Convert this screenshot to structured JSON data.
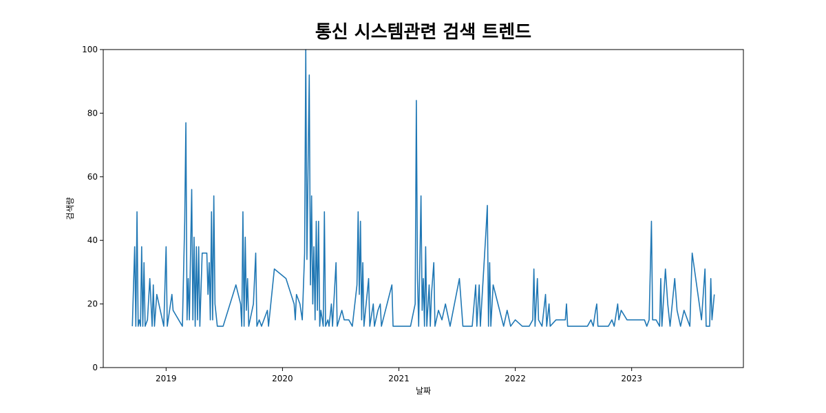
{
  "chart_data": {
    "type": "line",
    "title": "통신 시스템관련 검색 트렌드",
    "x_label": "날짜",
    "y_label": "검색량",
    "color": "#1f77b4",
    "x": [
      2018.71,
      2018.73,
      2018.74,
      2018.75,
      2018.76,
      2018.77,
      2018.78,
      2018.79,
      2018.8,
      2018.81,
      2018.82,
      2018.84,
      2018.86,
      2018.88,
      2018.89,
      2018.9,
      2018.92,
      2018.98,
      2019.0,
      2019.01,
      2019.05,
      2019.06,
      2019.14,
      2019.16,
      2019.17,
      2019.18,
      2019.19,
      2019.2,
      2019.21,
      2019.22,
      2019.23,
      2019.24,
      2019.25,
      2019.26,
      2019.27,
      2019.28,
      2019.29,
      2019.31,
      2019.35,
      2019.36,
      2019.37,
      2019.38,
      2019.39,
      2019.4,
      2019.41,
      2019.42,
      2019.44,
      2019.49,
      2019.6,
      2019.64,
      2019.65,
      2019.66,
      2019.67,
      2019.68,
      2019.69,
      2019.7,
      2019.71,
      2019.75,
      2019.77,
      2019.78,
      2019.8,
      2019.82,
      2019.87,
      2019.88,
      2019.93,
      2020.03,
      2020.1,
      2020.11,
      2020.12,
      2020.15,
      2020.17,
      2020.19,
      2020.2,
      2020.21,
      2020.22,
      2020.23,
      2020.24,
      2020.25,
      2020.26,
      2020.27,
      2020.28,
      2020.29,
      2020.3,
      2020.31,
      2020.32,
      2020.33,
      2020.35,
      2020.36,
      2020.37,
      2020.39,
      2020.4,
      2020.42,
      2020.43,
      2020.46,
      2020.47,
      2020.51,
      2020.53,
      2020.57,
      2020.6,
      2020.64,
      2020.65,
      2020.66,
      2020.67,
      2020.68,
      2020.69,
      2020.7,
      2020.74,
      2020.75,
      2020.78,
      2020.79,
      2020.82,
      2020.84,
      2020.85,
      2020.94,
      2020.95,
      2021.1,
      2021.14,
      2021.15,
      2021.16,
      2021.17,
      2021.18,
      2021.19,
      2021.2,
      2021.21,
      2021.22,
      2021.23,
      2021.24,
      2021.26,
      2021.27,
      2021.28,
      2021.3,
      2021.31,
      2021.34,
      2021.37,
      2021.4,
      2021.44,
      2021.52,
      2021.55,
      2021.63,
      2021.66,
      2021.67,
      2021.69,
      2021.7,
      2021.75,
      2021.76,
      2021.77,
      2021.78,
      2021.79,
      2021.81,
      2021.9,
      2021.93,
      2021.96,
      2022.0,
      2022.06,
      2022.12,
      2022.15,
      2022.16,
      2022.17,
      2022.19,
      2022.2,
      2022.23,
      2022.26,
      2022.27,
      2022.29,
      2022.3,
      2022.35,
      2022.43,
      2022.44,
      2022.45,
      2022.62,
      2022.65,
      2022.67,
      2022.69,
      2022.7,
      2022.71,
      2022.8,
      2022.83,
      2022.85,
      2022.88,
      2022.89,
      2022.91,
      2022.96,
      2023.11,
      2023.13,
      2023.15,
      2023.17,
      2023.18,
      2023.21,
      2023.24,
      2023.25,
      2023.26,
      2023.29,
      2023.31,
      2023.33,
      2023.37,
      2023.39,
      2023.42,
      2023.45,
      2023.5,
      2023.52,
      2023.6,
      2023.63,
      2023.64,
      2023.67,
      2023.68,
      2023.69,
      2023.71
    ],
    "values": [
      13,
      38,
      13,
      49,
      13,
      15,
      13,
      38,
      13,
      33,
      13,
      15,
      28,
      13,
      26,
      13,
      23,
      13,
      38,
      13,
      23,
      18,
      13,
      46,
      77,
      15,
      28,
      15,
      36,
      56,
      15,
      41,
      13,
      38,
      15,
      38,
      13,
      36,
      36,
      23,
      33,
      15,
      49,
      15,
      54,
      20,
      13,
      13,
      26,
      20,
      13,
      49,
      13,
      41,
      18,
      28,
      13,
      20,
      36,
      13,
      15,
      13,
      18,
      13,
      31,
      28,
      20,
      15,
      23,
      20,
      15,
      36,
      100,
      34,
      64,
      92,
      26,
      54,
      20,
      38,
      15,
      46,
      18,
      46,
      13,
      18,
      13,
      49,
      13,
      15,
      13,
      20,
      13,
      33,
      13,
      18,
      15,
      15,
      13,
      26,
      49,
      23,
      46,
      15,
      33,
      13,
      28,
      13,
      20,
      13,
      18,
      20,
      13,
      26,
      13,
      13,
      20,
      84,
      28,
      13,
      33,
      54,
      18,
      28,
      13,
      38,
      13,
      26,
      13,
      23,
      33,
      13,
      18,
      15,
      20,
      13,
      28,
      13,
      13,
      26,
      13,
      26,
      13,
      44,
      51,
      13,
      33,
      13,
      26,
      13,
      18,
      13,
      15,
      13,
      13,
      15,
      31,
      13,
      28,
      15,
      13,
      23,
      13,
      20,
      13,
      15,
      15,
      20,
      13,
      13,
      15,
      13,
      18,
      20,
      13,
      13,
      15,
      13,
      20,
      15,
      18,
      15,
      15,
      13,
      15,
      46,
      15,
      15,
      13,
      28,
      13,
      31,
      20,
      13,
      28,
      18,
      13,
      18,
      13,
      36,
      15,
      31,
      13,
      13,
      28,
      15,
      23
    ],
    "xlim": [
      2018.46,
      2023.96
    ],
    "xticks": [
      2019,
      2020,
      2021,
      2022,
      2023
    ],
    "ylim": [
      0,
      100
    ],
    "yticks": [
      0,
      20,
      40,
      60,
      80,
      100
    ]
  }
}
